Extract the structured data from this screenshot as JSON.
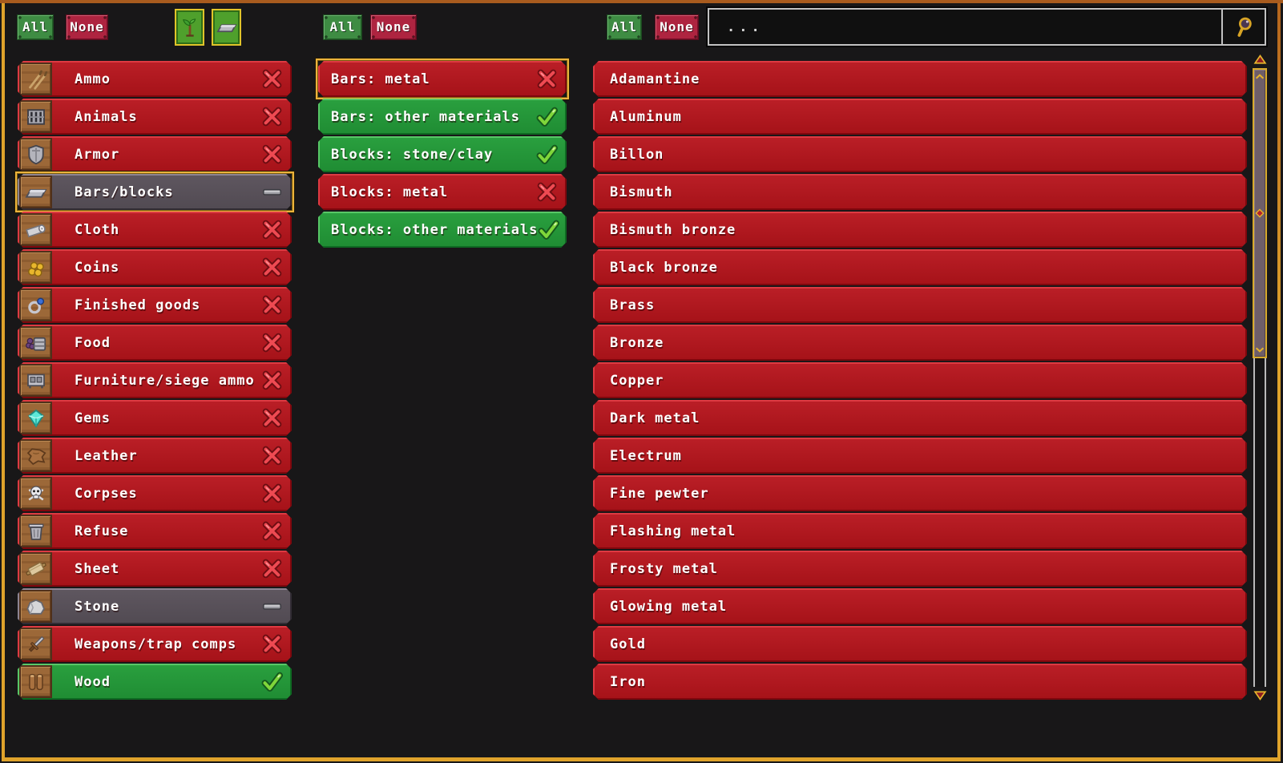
{
  "toolbar": {
    "category_buttons": {
      "all_label": "All",
      "none_label": "None"
    },
    "material_type_toggles": [
      {
        "name": "organic",
        "icon": "sapling-icon"
      },
      {
        "name": "inorganic",
        "icon": "metal-bar-icon"
      }
    ],
    "subcategory_buttons": {
      "all_label": "All",
      "none_label": "None"
    },
    "material_buttons": {
      "all_label": "All",
      "none_label": "None"
    },
    "search": {
      "placeholder": "...",
      "icon": "magnifier-icon"
    }
  },
  "categories": [
    {
      "label": "Ammo",
      "icon": "ammo-icon",
      "status": "excluded"
    },
    {
      "label": "Animals",
      "icon": "animal-cage-icon",
      "status": "excluded"
    },
    {
      "label": "Armor",
      "icon": "armor-icon",
      "status": "excluded"
    },
    {
      "label": "Bars/blocks",
      "icon": "metal-bar-icon",
      "status": "partial",
      "selected": true
    },
    {
      "label": "Cloth",
      "icon": "cloth-icon",
      "status": "excluded"
    },
    {
      "label": "Coins",
      "icon": "coins-icon",
      "status": "excluded"
    },
    {
      "label": "Finished goods",
      "icon": "amulet-icon",
      "status": "excluded"
    },
    {
      "label": "Food",
      "icon": "food-barrel-icon",
      "status": "excluded"
    },
    {
      "label": "Furniture/siege ammo",
      "icon": "furniture-icon",
      "status": "excluded"
    },
    {
      "label": "Gems",
      "icon": "gem-icon",
      "status": "excluded"
    },
    {
      "label": "Leather",
      "icon": "leather-icon",
      "status": "excluded"
    },
    {
      "label": "Corpses",
      "icon": "skull-icon",
      "status": "excluded"
    },
    {
      "label": "Refuse",
      "icon": "trash-icon",
      "status": "excluded"
    },
    {
      "label": "Sheet",
      "icon": "rolled-sheet-icon",
      "status": "excluded"
    },
    {
      "label": "Stone",
      "icon": "stone-icon",
      "status": "partial"
    },
    {
      "label": "Weapons/trap comps",
      "icon": "sword-icon",
      "status": "excluded"
    },
    {
      "label": "Wood",
      "icon": "logs-icon",
      "status": "included"
    }
  ],
  "subcategories": [
    {
      "label": "Bars: metal",
      "status": "excluded",
      "selected": true
    },
    {
      "label": "Bars: other materials",
      "status": "included"
    },
    {
      "label": "Blocks: stone/clay",
      "status": "included"
    },
    {
      "label": "Blocks: metal",
      "status": "excluded"
    },
    {
      "label": "Blocks: other materials",
      "status": "included"
    }
  ],
  "materials": [
    "Adamantine",
    "Aluminum",
    "Billon",
    "Bismuth",
    "Bismuth bronze",
    "Black bronze",
    "Brass",
    "Bronze",
    "Copper",
    "Dark metal",
    "Electrum",
    "Fine pewter",
    "Flashing metal",
    "Frosty metal",
    "Glowing metal",
    "Gold",
    "Iron"
  ],
  "status_icons": {
    "excluded": "x-icon",
    "included": "check-icon",
    "partial": "dash-icon"
  },
  "scrollbar": {
    "up_icon": "triangle-up-icon",
    "down_icon": "triangle-down-icon",
    "thumb_icons": [
      "chevron-up-icon",
      "diamond-icon",
      "chevron-down-icon"
    ]
  },
  "colors": {
    "row_red": "#b2171f",
    "row_green": "#27993a",
    "row_partial_gray": "#5a525a",
    "selection_gold": "#ecb33c",
    "frame_gold": "#dfa32b",
    "frame_orange": "#a85b1e",
    "button_green": "#3e8c43",
    "button_red": "#ae2440",
    "toggle_green": "#4fa02c",
    "x_red": "#ee4a52",
    "check_green": "#7fd63a"
  }
}
